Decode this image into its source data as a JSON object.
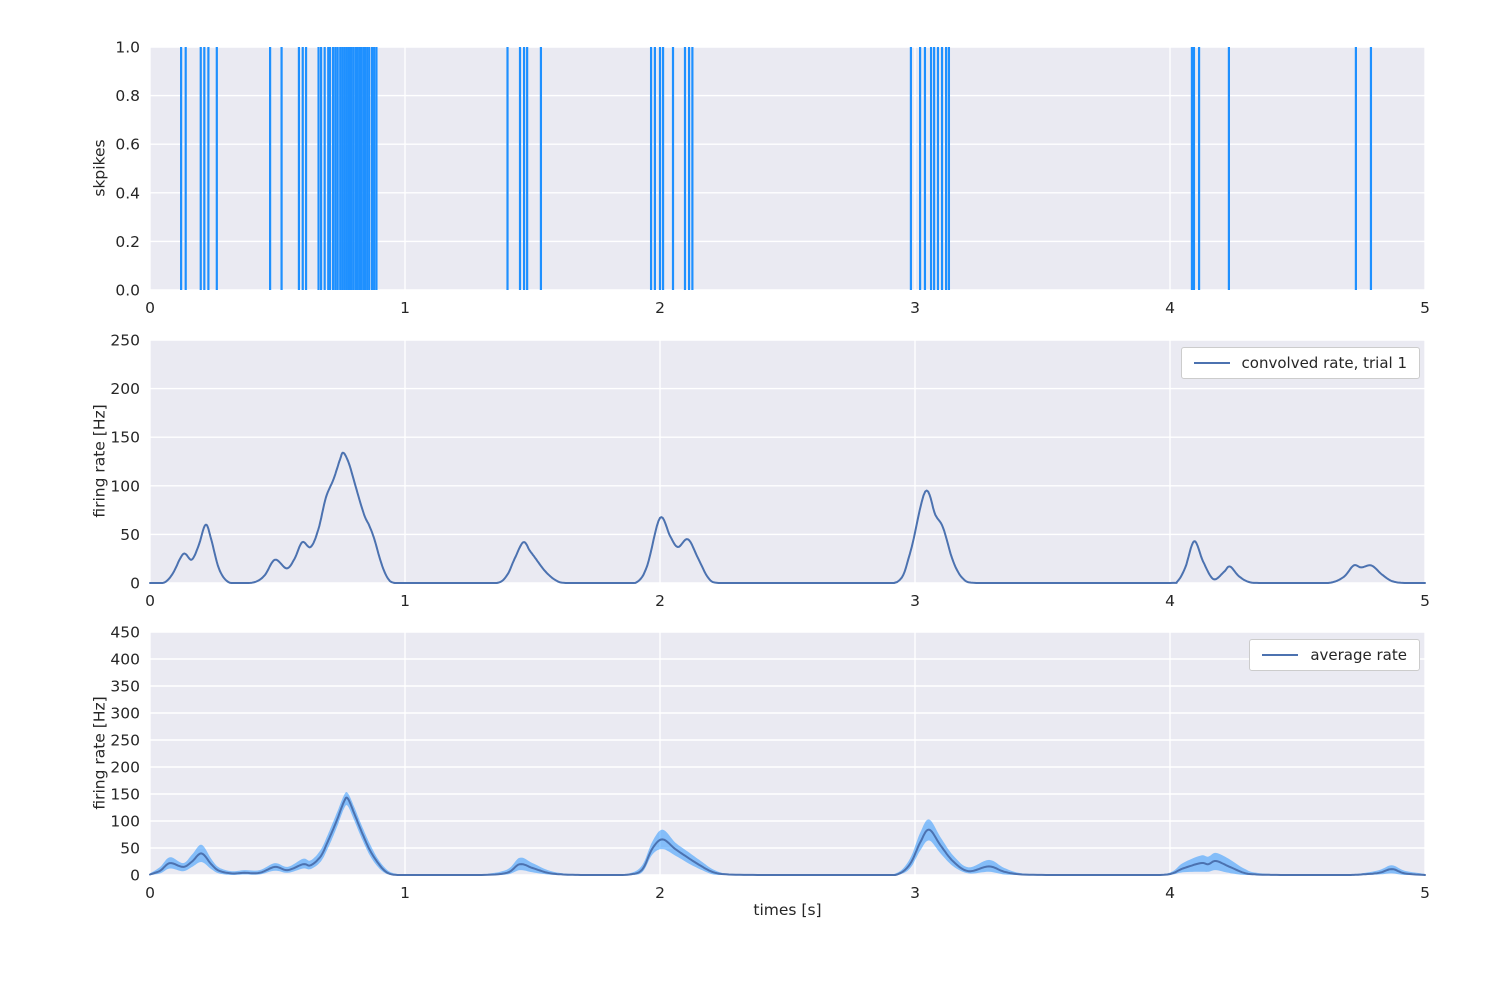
{
  "figure": {
    "background": "#ffffff",
    "panel_background": "#eaeaf2",
    "grid_color": "#ffffff",
    "tick_color": "#262626",
    "spike_color": "#1e90ff",
    "line_color": "#4c72b0",
    "band_color": "rgba(30,144,255,0.5)"
  },
  "chart_data": [
    {
      "type": "event",
      "ylabel": "skpikes",
      "xlim": [
        0,
        5
      ],
      "ylim": [
        0,
        1
      ],
      "xticks": [
        0,
        1,
        2,
        3,
        4,
        5
      ],
      "xtick_labels": [
        "0",
        "1",
        "2",
        "3",
        "4",
        "5"
      ],
      "yticks": [
        0,
        0.2,
        0.4,
        0.6,
        0.8,
        1.0
      ],
      "ytick_labels": [
        "0.0",
        "0.2",
        "0.4",
        "0.6",
        "0.8",
        "1.0"
      ],
      "grid": true,
      "spike_times": [
        0.122,
        0.14,
        0.199,
        0.213,
        0.229,
        0.262,
        0.471,
        0.516,
        0.584,
        0.599,
        0.612,
        0.661,
        0.671,
        0.685,
        0.699,
        0.706,
        0.718,
        0.727,
        0.736,
        0.746,
        0.754,
        0.762,
        0.77,
        0.778,
        0.786,
        0.791,
        0.799,
        0.808,
        0.815,
        0.823,
        0.829,
        0.838,
        0.844,
        0.852,
        0.86,
        0.871,
        0.879,
        0.888,
        1.402,
        1.451,
        1.467,
        1.479,
        1.533,
        1.965,
        1.98,
        2.0,
        2.012,
        2.051,
        2.098,
        2.114,
        2.127,
        2.984,
        3.02,
        3.039,
        3.063,
        3.075,
        3.09,
        3.106,
        3.122,
        3.133,
        4.086,
        4.094,
        4.114,
        4.231,
        4.729,
        4.788
      ]
    },
    {
      "type": "line",
      "ylabel": "firing rate [Hz]",
      "legend": "convolved rate, trial 1",
      "legend_position": "upper right",
      "xlim": [
        0,
        5
      ],
      "ylim": [
        0,
        250
      ],
      "xticks": [
        0,
        1,
        2,
        3,
        4,
        5
      ],
      "xtick_labels": [
        "0",
        "1",
        "2",
        "3",
        "4",
        "5"
      ],
      "yticks": [
        0,
        50,
        100,
        150,
        200,
        250
      ],
      "ytick_labels": [
        "0",
        "50",
        "100",
        "150",
        "200",
        "250"
      ],
      "grid": true,
      "points": [
        [
          0.0,
          0
        ],
        [
          0.03,
          0
        ],
        [
          0.06,
          1
        ],
        [
          0.09,
          10
        ],
        [
          0.131,
          30
        ],
        [
          0.163,
          24
        ],
        [
          0.19,
          38
        ],
        [
          0.218,
          60
        ],
        [
          0.24,
          45
        ],
        [
          0.27,
          15
        ],
        [
          0.307,
          1
        ],
        [
          0.36,
          0
        ],
        [
          0.412,
          1
        ],
        [
          0.45,
          8
        ],
        [
          0.49,
          24
        ],
        [
          0.536,
          15
        ],
        [
          0.567,
          25
        ],
        [
          0.597,
          42
        ],
        [
          0.63,
          37
        ],
        [
          0.66,
          55
        ],
        [
          0.69,
          88
        ],
        [
          0.72,
          107
        ],
        [
          0.745,
          127
        ],
        [
          0.758,
          134
        ],
        [
          0.78,
          123
        ],
        [
          0.81,
          96
        ],
        [
          0.84,
          70
        ],
        [
          0.86,
          59
        ],
        [
          0.88,
          45
        ],
        [
          0.905,
          22
        ],
        [
          0.93,
          6
        ],
        [
          0.96,
          0
        ],
        [
          1.05,
          0
        ],
        [
          1.15,
          0
        ],
        [
          1.25,
          0
        ],
        [
          1.36,
          0
        ],
        [
          1.4,
          8
        ],
        [
          1.43,
          25
        ],
        [
          1.464,
          42
        ],
        [
          1.49,
          33
        ],
        [
          1.51,
          26
        ],
        [
          1.55,
          12
        ],
        [
          1.59,
          3
        ],
        [
          1.63,
          0
        ],
        [
          1.75,
          0
        ],
        [
          1.85,
          0
        ],
        [
          1.91,
          1
        ],
        [
          1.95,
          18
        ],
        [
          2.0,
          67
        ],
        [
          2.04,
          48
        ],
        [
          2.07,
          37
        ],
        [
          2.11,
          45
        ],
        [
          2.15,
          25
        ],
        [
          2.19,
          5
        ],
        [
          2.23,
          0
        ],
        [
          2.35,
          0
        ],
        [
          2.5,
          0
        ],
        [
          2.65,
          0
        ],
        [
          2.8,
          0
        ],
        [
          2.93,
          1
        ],
        [
          2.98,
          30
        ],
        [
          3.04,
          94
        ],
        [
          3.08,
          70
        ],
        [
          3.11,
          57
        ],
        [
          3.15,
          22
        ],
        [
          3.19,
          4
        ],
        [
          3.24,
          0
        ],
        [
          3.4,
          0
        ],
        [
          3.6,
          0
        ],
        [
          3.8,
          0
        ],
        [
          4.0,
          0
        ],
        [
          4.03,
          2
        ],
        [
          4.06,
          16
        ],
        [
          4.095,
          43
        ],
        [
          4.13,
          22
        ],
        [
          4.17,
          4
        ],
        [
          4.21,
          11
        ],
        [
          4.235,
          17
        ],
        [
          4.27,
          7
        ],
        [
          4.31,
          1
        ],
        [
          4.36,
          0
        ],
        [
          4.5,
          0
        ],
        [
          4.62,
          0
        ],
        [
          4.68,
          6
        ],
        [
          4.72,
          18
        ],
        [
          4.75,
          16
        ],
        [
          4.79,
          18
        ],
        [
          4.83,
          9
        ],
        [
          4.87,
          2
        ],
        [
          4.92,
          0
        ],
        [
          5.0,
          0
        ]
      ]
    },
    {
      "type": "line_band",
      "xlabel": "times [s]",
      "ylabel": "firing rate [Hz]",
      "legend": "average rate",
      "legend_position": "upper right",
      "xlim": [
        0,
        5
      ],
      "ylim": [
        0,
        450
      ],
      "xticks": [
        0,
        1,
        2,
        3,
        4,
        5
      ],
      "xtick_labels": [
        "0",
        "1",
        "2",
        "3",
        "4",
        "5"
      ],
      "yticks": [
        0,
        50,
        100,
        150,
        200,
        250,
        300,
        350,
        400,
        450
      ],
      "ytick_labels": [
        "0",
        "50",
        "100",
        "150",
        "200",
        "250",
        "300",
        "350",
        "400",
        "450"
      ],
      "grid": true,
      "points_format": [
        "t",
        "mean",
        "lo",
        "hi"
      ],
      "points": [
        [
          0.0,
          1,
          0,
          3
        ],
        [
          0.04,
          8,
          3,
          15
        ],
        [
          0.078,
          22,
          12,
          33
        ],
        [
          0.13,
          15,
          7,
          22
        ],
        [
          0.165,
          25,
          15,
          38
        ],
        [
          0.202,
          40,
          24,
          56
        ],
        [
          0.24,
          20,
          11,
          30
        ],
        [
          0.27,
          8,
          3,
          14
        ],
        [
          0.32,
          3,
          0,
          7
        ],
        [
          0.37,
          4,
          1,
          9
        ],
        [
          0.43,
          4,
          1,
          9
        ],
        [
          0.49,
          15,
          8,
          22
        ],
        [
          0.54,
          9,
          4,
          15
        ],
        [
          0.6,
          20,
          12,
          30
        ],
        [
          0.63,
          18,
          11,
          27
        ],
        [
          0.67,
          35,
          25,
          47
        ],
        [
          0.7,
          65,
          52,
          78
        ],
        [
          0.73,
          98,
          85,
          112
        ],
        [
          0.76,
          135,
          122,
          147
        ],
        [
          0.775,
          142,
          128,
          152
        ],
        [
          0.8,
          115,
          102,
          127
        ],
        [
          0.83,
          80,
          68,
          92
        ],
        [
          0.86,
          48,
          38,
          60
        ],
        [
          0.89,
          25,
          17,
          33
        ],
        [
          0.92,
          8,
          4,
          14
        ],
        [
          0.95,
          1,
          0,
          4
        ],
        [
          1.0,
          0,
          0,
          1
        ],
        [
          1.1,
          0,
          0,
          1
        ],
        [
          1.2,
          0,
          0,
          1
        ],
        [
          1.3,
          0,
          0,
          1
        ],
        [
          1.4,
          4,
          1,
          10
        ],
        [
          1.45,
          20,
          9,
          32
        ],
        [
          1.5,
          13,
          5,
          22
        ],
        [
          1.56,
          4,
          1,
          9
        ],
        [
          1.62,
          1,
          0,
          3
        ],
        [
          1.7,
          0,
          0,
          1
        ],
        [
          1.8,
          0,
          0,
          1
        ],
        [
          1.88,
          1,
          0,
          3
        ],
        [
          1.93,
          10,
          5,
          18
        ],
        [
          1.97,
          49,
          38,
          62
        ],
        [
          2.01,
          66,
          48,
          84
        ],
        [
          2.06,
          48,
          36,
          60
        ],
        [
          2.11,
          32,
          22,
          43
        ],
        [
          2.16,
          17,
          10,
          26
        ],
        [
          2.21,
          5,
          1,
          10
        ],
        [
          2.27,
          1,
          0,
          2
        ],
        [
          2.4,
          0,
          0,
          1
        ],
        [
          2.55,
          0,
          0,
          1
        ],
        [
          2.7,
          0,
          0,
          1
        ],
        [
          2.85,
          0,
          0,
          1
        ],
        [
          2.93,
          1,
          0,
          4
        ],
        [
          2.98,
          20,
          12,
          30
        ],
        [
          3.02,
          60,
          45,
          78
        ],
        [
          3.055,
          84,
          64,
          103
        ],
        [
          3.1,
          55,
          40,
          70
        ],
        [
          3.15,
          25,
          16,
          36
        ],
        [
          3.21,
          7,
          3,
          14
        ],
        [
          3.29,
          16,
          6,
          28
        ],
        [
          3.35,
          6,
          1,
          13
        ],
        [
          3.42,
          1,
          0,
          3
        ],
        [
          3.55,
          0,
          0,
          1
        ],
        [
          3.7,
          0,
          0,
          1
        ],
        [
          3.85,
          0,
          0,
          1
        ],
        [
          3.99,
          1,
          0,
          3
        ],
        [
          4.05,
          12,
          5,
          22
        ],
        [
          4.12,
          22,
          6,
          36
        ],
        [
          4.15,
          20,
          6,
          34
        ],
        [
          4.18,
          26,
          9,
          41
        ],
        [
          4.23,
          16,
          4,
          30
        ],
        [
          4.29,
          4,
          0,
          12
        ],
        [
          4.34,
          1,
          0,
          4
        ],
        [
          4.45,
          0,
          0,
          1
        ],
        [
          4.6,
          0,
          0,
          1
        ],
        [
          4.7,
          0,
          0,
          1
        ],
        [
          4.75,
          1,
          0,
          3
        ],
        [
          4.82,
          4,
          1,
          9
        ],
        [
          4.87,
          11,
          3,
          18
        ],
        [
          4.92,
          3,
          0,
          8
        ],
        [
          5.0,
          0,
          0,
          2
        ]
      ]
    }
  ]
}
